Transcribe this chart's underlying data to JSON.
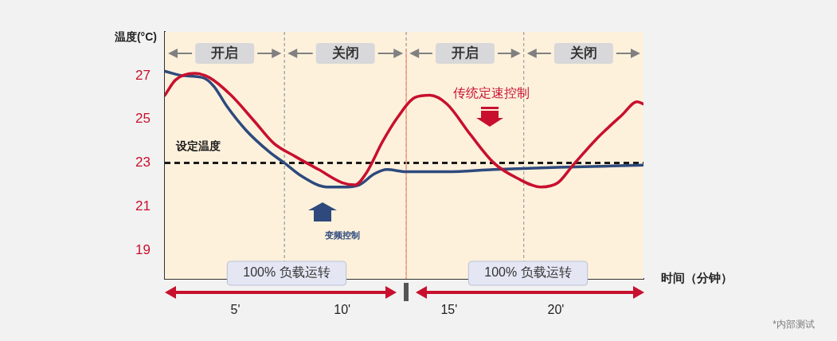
{
  "chart_data": {
    "type": "line",
    "ylabel": "温度(°C)",
    "xlabel": "时间（分钟）",
    "xlim": [
      1.7,
      24.1
    ],
    "ylim": [
      17.7,
      29.0
    ],
    "xticks": [
      {
        "value": 5,
        "label": "5'"
      },
      {
        "value": 10,
        "label": "10'"
      },
      {
        "value": 15,
        "label": "15'"
      },
      {
        "value": 20,
        "label": "20'"
      }
    ],
    "yticks": [
      19,
      21,
      23,
      25,
      27
    ],
    "grid": "y",
    "legend": false,
    "marker": "none",
    "line_style": "solid",
    "series": [
      {
        "name": "变频控制",
        "color": "#2e4a7d",
        "x": [
          1.7,
          2.5,
          3.5,
          4.0,
          4.6,
          5.5,
          6.6,
          7.3,
          8.1,
          9.3,
          10.0,
          10.8,
          11.5,
          12.1,
          13.0,
          14.9,
          17.1,
          20.1,
          24.1
        ],
        "values": [
          27.2,
          27.0,
          26.9,
          26.5,
          25.6,
          24.5,
          23.5,
          23.0,
          22.4,
          21.9,
          21.9,
          22.0,
          22.5,
          22.7,
          22.6,
          22.6,
          22.7,
          22.8,
          22.9
        ]
      },
      {
        "name": "传统定速控制",
        "color": "#c8102e",
        "x": [
          1.7,
          2.2,
          3.1,
          3.8,
          4.8,
          5.9,
          6.8,
          7.8,
          8.9,
          10.0,
          10.6,
          11.1,
          11.9,
          12.6,
          13.4,
          14.1,
          14.9,
          16.0,
          17.1,
          18.2,
          19.3,
          20.1,
          20.8,
          21.9,
          23.1,
          23.8,
          24.1
        ],
        "values": [
          26.1,
          26.8,
          27.1,
          26.9,
          26.1,
          24.9,
          23.9,
          23.3,
          22.7,
          22.1,
          22.0,
          22.5,
          24.0,
          25.1,
          26.0,
          26.1,
          25.7,
          24.3,
          23.0,
          22.3,
          21.9,
          22.1,
          22.9,
          24.1,
          25.2,
          25.8,
          25.7
        ]
      }
    ],
    "ref_lines": [
      {
        "axis": "y",
        "value": 23,
        "label": "设定温度",
        "color": "#1a1a1a",
        "line_style": "dashed"
      },
      {
        "axis": "x",
        "value": 13,
        "color": "#f4a08a",
        "line_style": "solid"
      }
    ],
    "bands": [
      {
        "axis": "x",
        "from": 1.7,
        "to": 7.3,
        "label": "开启",
        "color": "#fdf1dc"
      },
      {
        "axis": "x",
        "from": 7.3,
        "to": 13,
        "label": "关闭",
        "color": "#fdf1dc"
      },
      {
        "axis": "x",
        "from": 13,
        "to": 18.5,
        "label": "开启",
        "color": "#fdf1dc"
      },
      {
        "axis": "x",
        "from": 18.5,
        "to": 24.1,
        "label": "关闭",
        "color": "#fdf1dc"
      }
    ],
    "annotations": [
      "100% 负载运转",
      "100% 负载运转",
      "*内部测试"
    ]
  }
}
